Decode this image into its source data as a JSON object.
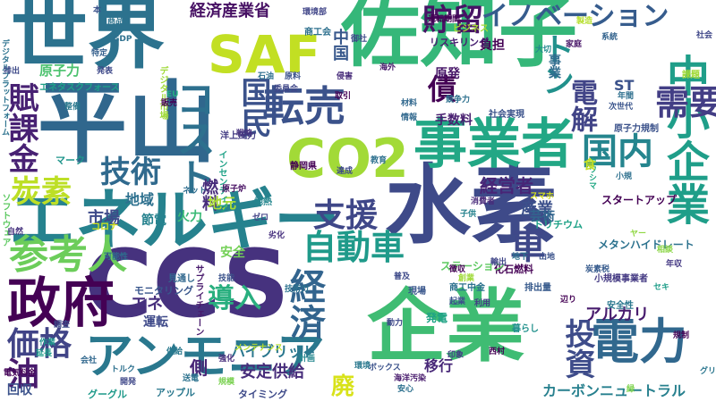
{
  "title": "",
  "words": [
    {
      "text": "水素",
      "color": "#3e4a89",
      "vertical": false
    },
    {
      "text": "CCS",
      "color": "#46327e",
      "vertical": false
    },
    {
      "text": "佐知子",
      "color": "#35b779",
      "vertical": false
    },
    {
      "text": "平山",
      "color": "#30678d",
      "vertical": false
    },
    {
      "text": "世界",
      "color": "#2c728e",
      "vertical": false
    },
    {
      "text": "エネルギー",
      "color": "#26828e",
      "vertical": false
    },
    {
      "text": "企業",
      "color": "#3fbc73",
      "vertical": false
    },
    {
      "text": "事業者",
      "color": "#22a785",
      "vertical": false
    },
    {
      "text": "SAF",
      "color": "#c2df23",
      "vertical": false
    },
    {
      "text": "CO2",
      "color": "#a2da37",
      "vertical": false
    },
    {
      "text": "中小企業",
      "color": "#1f9e89",
      "vertical": true
    },
    {
      "text": "政府",
      "color": "#440154",
      "vertical": false
    },
    {
      "text": "アンモニア",
      "color": "#2a788e",
      "vertical": false
    },
    {
      "text": "転売",
      "color": "#3b528b",
      "vertical": false
    },
    {
      "text": "電力",
      "color": "#31688e",
      "vertical": false
    },
    {
      "text": "参考人",
      "color": "#6ccd5a",
      "vertical": false
    },
    {
      "text": "コスト",
      "color": "#2d708e",
      "vertical": true
    },
    {
      "text": "自動車",
      "color": "#1f9a8a",
      "vertical": false
    },
    {
      "text": "国内",
      "color": "#25858e",
      "vertical": false
    },
    {
      "text": "経済",
      "color": "#32648e",
      "vertical": true
    },
    {
      "text": "価格",
      "color": "#414487",
      "vertical": false
    },
    {
      "text": "支援",
      "color": "#3f4788",
      "vertical": false
    },
    {
      "text": "車",
      "color": "#3f4889",
      "vertical": false
    },
    {
      "text": "需要",
      "color": "#433e85",
      "vertical": false
    },
    {
      "text": "イノベーション",
      "color": "#365c8d",
      "vertical": false
    },
    {
      "text": "技術",
      "color": "#306a8e",
      "vertical": false
    },
    {
      "text": "炭素",
      "color": "#bddf26",
      "vertical": false
    },
    {
      "text": "国民",
      "color": "#3b528b",
      "vertical": true
    },
    {
      "text": "賦課金",
      "color": "#482173",
      "vertical": true
    },
    {
      "text": "油",
      "color": "#481b6d",
      "vertical": false
    },
    {
      "text": "トン",
      "color": "#21918c",
      "vertical": true
    },
    {
      "text": "貯留",
      "color": "#471365",
      "vertical": false
    },
    {
      "text": "投資",
      "color": "#3e4c8a",
      "vertical": true
    },
    {
      "text": "導入",
      "color": "#29af7f",
      "vertical": false
    },
    {
      "text": "電解",
      "color": "#414487",
      "vertical": true
    },
    {
      "text": "債",
      "color": "#440154",
      "vertical": false
    },
    {
      "text": "経営者",
      "color": "#482576",
      "vertical": false
    },
    {
      "text": "原子力",
      "color": "#4ac16d",
      "vertical": false
    },
    {
      "text": "経済産業省",
      "color": "#471164",
      "vertical": false
    },
    {
      "text": "アルカリ",
      "color": "#481c6e",
      "vertical": false
    },
    {
      "text": "ハイブリッド",
      "color": "#2a778e",
      "vertical": false
    },
    {
      "text": "安定供給",
      "color": "#472d7b",
      "vertical": false
    },
    {
      "text": "市場",
      "color": "#3e4a89",
      "vertical": false
    },
    {
      "text": "燃料",
      "color": "#472c7a",
      "vertical": true
    },
    {
      "text": "中国",
      "color": "#38588c",
      "vertical": true
    },
    {
      "text": "産業",
      "color": "#3c508b",
      "vertical": false
    },
    {
      "text": "地域",
      "color": "#2d708e",
      "vertical": false
    },
    {
      "text": "カーボンニュートラル",
      "color": "#27808e",
      "vertical": false
    },
    {
      "text": "メタンハイドレート",
      "color": "#2c728e",
      "vertical": false
    },
    {
      "text": "手数料",
      "color": "#481f70",
      "vertical": false
    },
    {
      "text": "移行",
      "color": "#482878",
      "vertical": false
    },
    {
      "text": "芸術",
      "color": "#31678e",
      "vertical": false
    },
    {
      "text": "廃",
      "color": "#d8e219",
      "vertical": false
    },
    {
      "text": "火力",
      "color": "#3aba76",
      "vertical": false
    },
    {
      "text": "節電",
      "color": "#26828e",
      "vertical": false
    },
    {
      "text": "安全",
      "color": "#73d056",
      "vertical": false
    },
    {
      "text": "運転",
      "color": "#3e4989",
      "vertical": false
    },
    {
      "text": "側",
      "color": "#482677",
      "vertical": false
    },
    {
      "text": "エネ",
      "color": "#472f7d",
      "vertical": false
    },
    {
      "text": "発電",
      "color": "#20a386",
      "vertical": false
    },
    {
      "text": "負担",
      "color": "#440154",
      "vertical": false
    },
    {
      "text": "原発",
      "color": "#481769",
      "vertical": false
    },
    {
      "text": "事業",
      "color": "#2f6c8e",
      "vertical": true
    },
    {
      "text": "ST",
      "color": "#3b528b",
      "vertical": false
    },
    {
      "text": "地元",
      "color": "#a8db34",
      "vertical": false
    },
    {
      "text": "スタートアップ",
      "color": "#440154",
      "vertical": false
    },
    {
      "text": "化石燃料",
      "color": "#440154",
      "vertical": false
    },
    {
      "text": "トリチウム",
      "color": "#1fa287",
      "vertical": false
    },
    {
      "text": "ステーション",
      "color": "#5ec962",
      "vertical": false
    },
    {
      "text": "モニタリング",
      "color": "#39568c",
      "vertical": false
    },
    {
      "text": "回収",
      "color": "#3b528b",
      "vertical": false
    },
    {
      "text": "グーグル",
      "color": "#1f9a8a",
      "vertical": false
    },
    {
      "text": "アップル",
      "color": "#2a788e",
      "vertical": false
    },
    {
      "text": "タイミング",
      "color": "#3e4a89",
      "vertical": false
    },
    {
      "text": "マーク",
      "color": "#1f958b",
      "vertical": false
    },
    {
      "text": "リスキリング",
      "color": "#482071",
      "vertical": false
    },
    {
      "text": "商工会",
      "color": "#2d708e",
      "vertical": false
    },
    {
      "text": "運転期間",
      "color": "#440154",
      "vertical": false
    },
    {
      "text": "ビジネス",
      "color": "#a5db36",
      "vertical": false
    },
    {
      "text": "デジタルプラットフォーム",
      "color": "#2c728e",
      "vertical": true
    },
    {
      "text": "エネタスクフォース",
      "color": "#1fa088",
      "vertical": false
    },
    {
      "text": "デジタル市場",
      "color": "#a0da39",
      "vertical": true
    },
    {
      "text": "サプライチェーン",
      "color": "#481a6c",
      "vertical": true
    },
    {
      "text": "インセンティブ",
      "color": "#1fa287",
      "vertical": true
    },
    {
      "text": "ソフトウェア",
      "color": "#5ec962",
      "vertical": true
    },
    {
      "text": "地熱",
      "color": "#24868e",
      "vertical": false
    },
    {
      "text": "現場",
      "color": "#39568c",
      "vertical": false
    },
    {
      "text": "静岡県",
      "color": "#440154",
      "vertical": false
    },
    {
      "text": "洋上風力",
      "color": "#433d84",
      "vertical": false
    },
    {
      "text": "コロナ",
      "color": "#d2e21b",
      "vertical": false
    },
    {
      "text": "小規模事業者",
      "color": "#443a83",
      "vertical": false
    },
    {
      "text": "原子力規制",
      "color": "#3b528b",
      "vertical": false
    },
    {
      "text": "社会実現",
      "color": "#3b528b",
      "vertical": false
    },
    {
      "text": "商工中金",
      "color": "#2c718e",
      "vertical": false
    },
    {
      "text": "排出量",
      "color": "#375a8c",
      "vertical": false
    },
    {
      "text": "電気料金",
      "color": "#450559",
      "vertical": false
    },
    {
      "text": "可能性",
      "color": "#2e6e8e",
      "vertical": false
    },
    {
      "text": "技術力",
      "color": "#2c728e",
      "vertical": false
    },
    {
      "text": "暮らし",
      "color": "#21918c",
      "vertical": false
    },
    {
      "text": "安全性",
      "color": "#2a778e",
      "vertical": false
    },
    {
      "text": "見通し",
      "color": "#31688e",
      "vertical": false
    },
    {
      "text": "技能",
      "color": "#3b528b",
      "vertical": false
    },
    {
      "text": "劣化",
      "color": "#46307e",
      "vertical": false
    },
    {
      "text": "炭素税",
      "color": "#375b8d",
      "vertical": false
    },
    {
      "text": "競争力",
      "color": "#2d708e",
      "vertical": false
    },
    {
      "text": "材料",
      "color": "#31688e",
      "vertical": false
    },
    {
      "text": "戦略",
      "color": "#46327e",
      "vertical": false
    },
    {
      "text": "教育",
      "color": "#2d708e",
      "vertical": false
    },
    {
      "text": "達成",
      "color": "#3e4989",
      "vertical": false
    },
    {
      "text": "ネット",
      "color": "#2e6d8e",
      "vertical": false
    },
    {
      "text": "ゼロ",
      "color": "#424186",
      "vertical": false
    },
    {
      "text": "原子炉",
      "color": "#471063",
      "vertical": false
    },
    {
      "text": "大切",
      "color": "#238a8d",
      "vertical": false
    },
    {
      "text": "家庭",
      "color": "#481668",
      "vertical": false
    },
    {
      "text": "系統",
      "color": "#33638d",
      "vertical": false
    },
    {
      "text": "社会",
      "color": "#3f4788",
      "vertical": false
    },
    {
      "text": "課題",
      "color": "#a2da37",
      "vertical": false
    },
    {
      "text": "製造",
      "color": "#b5de2b",
      "vertical": false
    },
    {
      "text": "整備",
      "color": "#2a788e",
      "vertical": false
    },
    {
      "text": "販売",
      "color": "#440154",
      "vertical": false
    },
    {
      "text": "EU",
      "color": "#25ac82",
      "vertical": false
    },
    {
      "text": "GDP",
      "color": "#2d708e",
      "vertical": false
    },
    {
      "text": "商品",
      "color": "#2c738e",
      "vertical": false
    },
    {
      "text": "排出",
      "color": "#3e4a89",
      "vertical": false
    },
    {
      "text": "特定",
      "color": "#35608d",
      "vertical": false
    },
    {
      "text": "発表",
      "color": "#3e4989",
      "vertical": false
    },
    {
      "text": "作業",
      "color": "#21918c",
      "vertical": false
    },
    {
      "text": "会社",
      "color": "#31688e",
      "vertical": false
    },
    {
      "text": "供給",
      "color": "#29798e",
      "vertical": false
    },
    {
      "text": "強化",
      "color": "#472d7b",
      "vertical": false
    },
    {
      "text": "メンテナンス",
      "color": "#b8de29",
      "vertical": false
    },
    {
      "text": "計画",
      "color": "#24878e",
      "vertical": false
    },
    {
      "text": "トルク",
      "color": "#2d708e",
      "vertical": false
    },
    {
      "text": "開発",
      "color": "#3f4889",
      "vertical": false
    },
    {
      "text": "送電",
      "color": "#2c728e",
      "vertical": false
    },
    {
      "text": "規模",
      "color": "#7ad151",
      "vertical": false
    },
    {
      "text": "環境",
      "color": "#2a788e",
      "vertical": false
    },
    {
      "text": "海洋汚染",
      "color": "#481b6d",
      "vertical": false
    },
    {
      "text": "安心",
      "color": "#2d708e",
      "vertical": false
    },
    {
      "text": "印象",
      "color": "#433e85",
      "vertical": false
    },
    {
      "text": "利用",
      "color": "#433d84",
      "vertical": false
    },
    {
      "text": "起業",
      "color": "#3b528b",
      "vertical": false
    },
    {
      "text": "辺り",
      "color": "#440154",
      "vertical": false
    },
    {
      "text": "セキ",
      "color": "#1f9e89",
      "vertical": false
    },
    {
      "text": "規制",
      "color": "#440154",
      "vertical": false
    },
    {
      "text": "グリー",
      "color": "#2a768e",
      "vertical": false
    },
    {
      "text": "ボックス",
      "color": "#3b528b",
      "vertical": false
    },
    {
      "text": "スマホ",
      "color": "#d5e21a",
      "vertical": false
    },
    {
      "text": "地下",
      "color": "#2d708e",
      "vertical": false
    },
    {
      "text": "山地",
      "color": "#3b528b",
      "vertical": false
    },
    {
      "text": "相談",
      "color": "#8bd646",
      "vertical": false
    },
    {
      "text": "創業",
      "color": "#a0da39",
      "vertical": false
    },
    {
      "text": "徴収",
      "color": "#440154",
      "vertical": false
    },
    {
      "text": "輸出",
      "color": "#404688",
      "vertical": false
    },
    {
      "text": "普及",
      "color": "#3e4a89",
      "vertical": false
    },
    {
      "text": "動力",
      "color": "#3e4989",
      "vertical": false
    },
    {
      "text": "西村",
      "color": "#440154",
      "vertical": false
    },
    {
      "text": "子供",
      "color": "#26828e",
      "vertical": false
    },
    {
      "text": "消費者",
      "color": "#482979",
      "vertical": false
    },
    {
      "text": "カワシマ",
      "color": "#22a884",
      "vertical": true
    },
    {
      "text": "食",
      "color": "#c5e021",
      "vertical": false
    },
    {
      "text": "次世代",
      "color": "#3a548c",
      "vertical": false
    },
    {
      "text": "年間",
      "color": "#2e6f8e",
      "vertical": false
    },
    {
      "text": "情報",
      "color": "#31688e",
      "vertical": false
    },
    {
      "text": "取引",
      "color": "#440154",
      "vertical": false
    },
    {
      "text": "委員会",
      "color": "#3f4788",
      "vertical": false
    },
    {
      "text": "石油",
      "color": "#2e6e8e",
      "vertical": false
    },
    {
      "text": "原料",
      "color": "#3b528b",
      "vertical": false
    },
    {
      "text": "侵害",
      "color": "#472c7a",
      "vertical": false
    },
    {
      "text": "海外",
      "color": "#481a6c",
      "vertical": false
    },
    {
      "text": "御社",
      "color": "#3e4989",
      "vertical": false
    },
    {
      "text": "環境部",
      "color": "#404588",
      "vertical": false
    },
    {
      "text": "延長",
      "color": "#1e9c89",
      "vertical": false
    },
    {
      "text": "調査",
      "color": "#3e4c8a",
      "vertical": false
    },
    {
      "text": "自然",
      "color": "#46337f",
      "vertical": false
    },
    {
      "text": "緑",
      "color": "#7fd34e",
      "vertical": false
    },
    {
      "text": "本",
      "color": "#3b528b",
      "vertical": false
    },
    {
      "text": "ヤー",
      "color": "#90d743",
      "vertical": false
    },
    {
      "text": "年収",
      "color": "#443983",
      "vertical": false
    },
    {
      "text": "小規",
      "color": "#2d708e",
      "vertical": false
    }
  ]
}
